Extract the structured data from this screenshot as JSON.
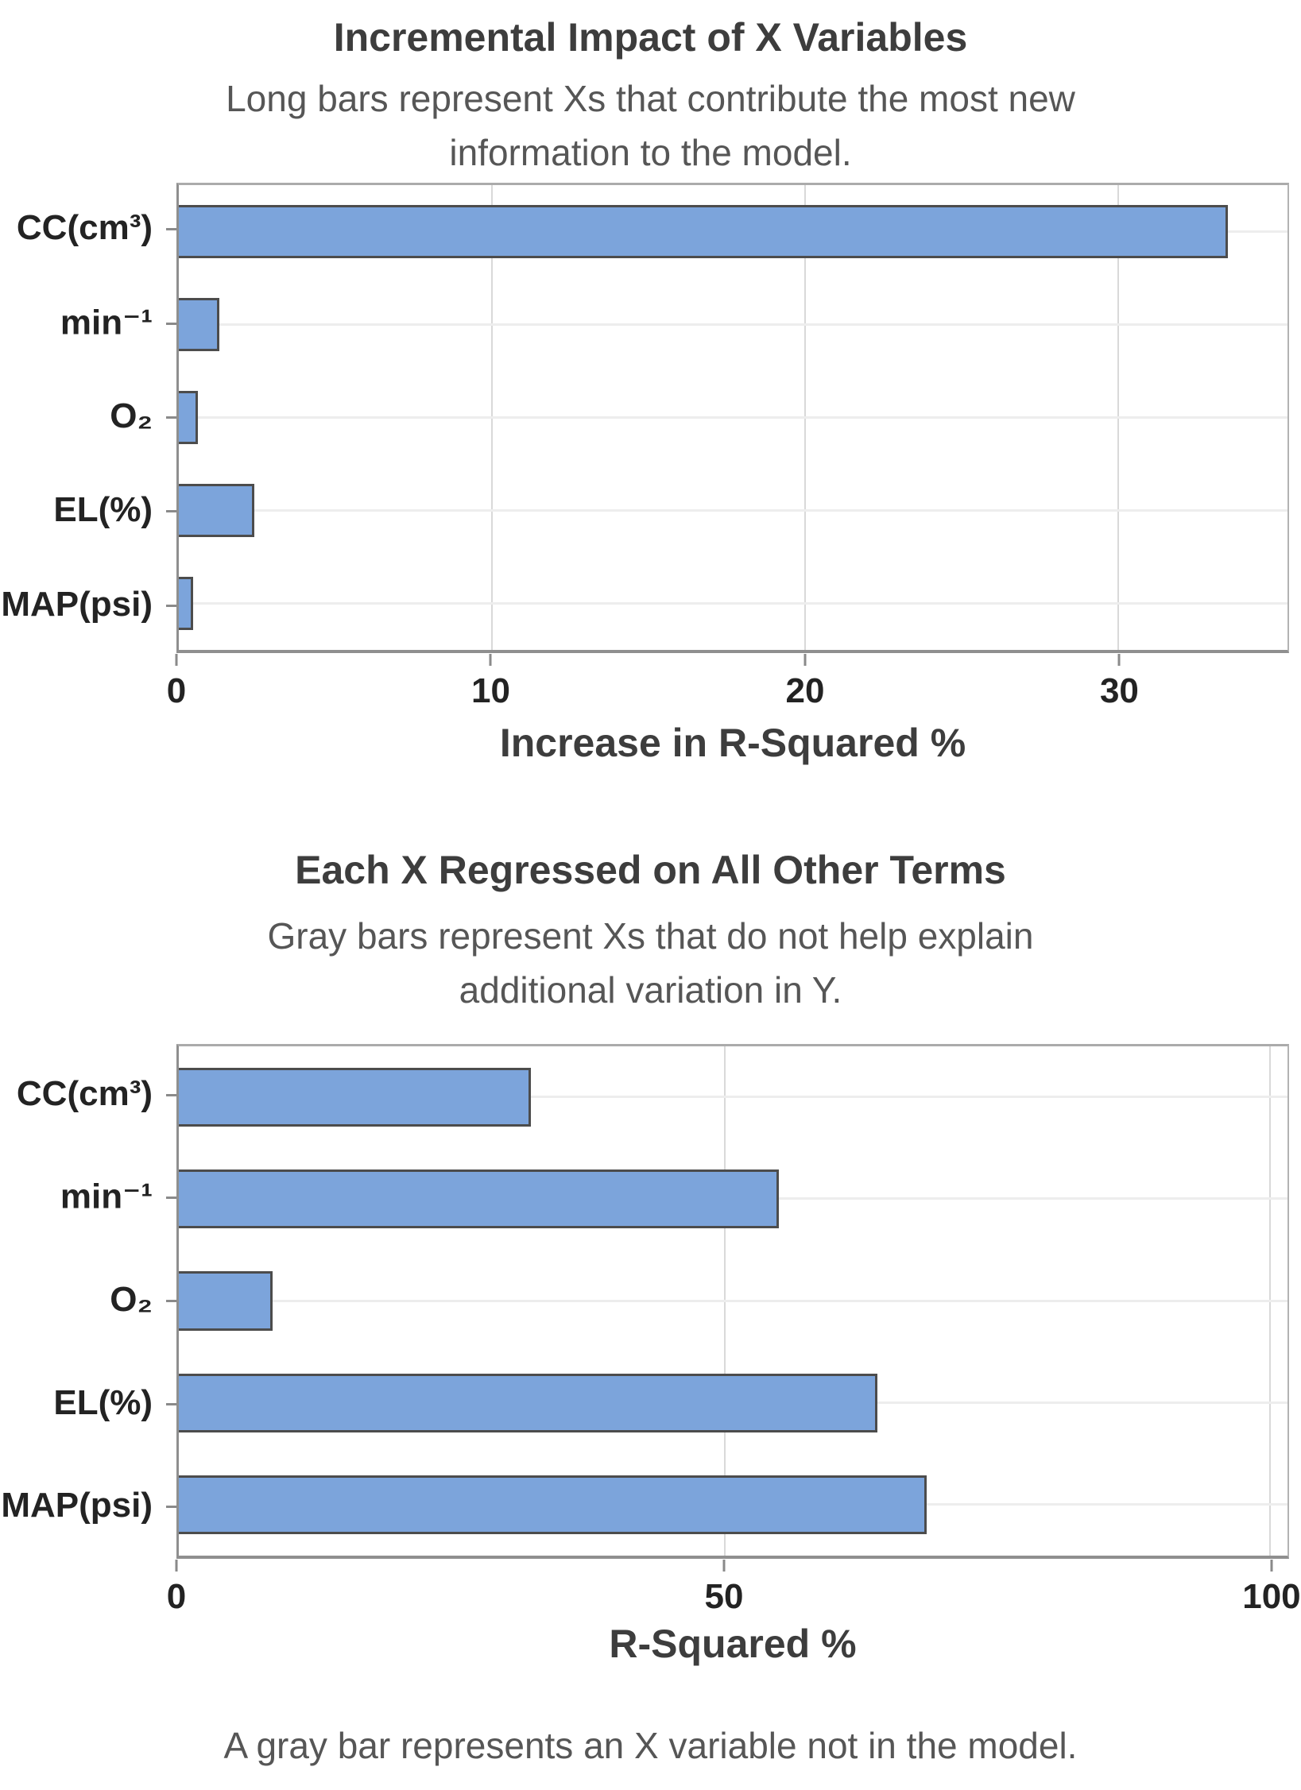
{
  "colors": {
    "bar_fill": "#7CA4DB",
    "bar_border": "#4C4C4C",
    "axis_line": "#8F8F8F",
    "gridline": "#D9D9D9",
    "row_gridline": "#EDEDED",
    "title_text": "#3D3D3D",
    "subtitle_text": "#565656",
    "label_text": "#232323",
    "background": "#FFFFFF"
  },
  "footnote": "A gray bar represents an X variable not in the model.",
  "chart_data": [
    {
      "type": "bar",
      "orientation": "horizontal",
      "title": "Incremental Impact of X Variables",
      "subtitle_lines": [
        "Long bars represent Xs that contribute the most new",
        "information to the model."
      ],
      "categories": [
        "CC(cm³)",
        "min⁻¹",
        "O₂",
        "EL(%)",
        "MAP(psi)"
      ],
      "values": [
        33.5,
        1.3,
        0.6,
        2.4,
        0.45
      ],
      "xlabel": "Increase in R-Squared %",
      "xticks": [
        0,
        10,
        20,
        30
      ],
      "xlim": [
        0,
        35.4
      ],
      "grid": true,
      "legend": false,
      "bar_color": "#7CA4DB"
    },
    {
      "type": "bar",
      "orientation": "horizontal",
      "title": "Each X Regressed on All Other Terms",
      "subtitle_lines": [
        "Gray bars represent Xs that do not help explain",
        "additional variation in Y."
      ],
      "categories": [
        "CC(cm³)",
        "min⁻¹",
        "O₂",
        "EL(%)",
        "MAP(psi)"
      ],
      "values": [
        32.3,
        55,
        8.6,
        64,
        68.5
      ],
      "xlabel": "R-Squared %",
      "xticks": [
        0,
        50,
        100
      ],
      "xlim": [
        0,
        101.6
      ],
      "grid": true,
      "legend": false,
      "bar_color": "#7CA4DB"
    }
  ]
}
